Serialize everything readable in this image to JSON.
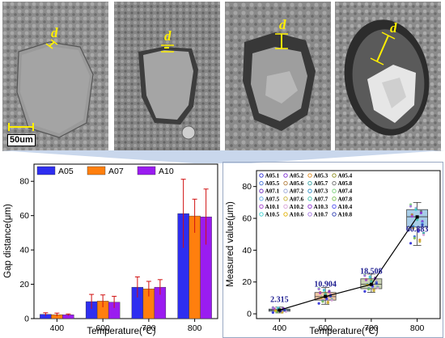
{
  "panels": {
    "scale_bar_label": "50um",
    "gap_symbol": "d"
  },
  "colors": {
    "A05": "#2e2ef0",
    "A07": "#ff7f0e",
    "A10": "#9a1cf0",
    "box_400": "#a8cde8",
    "box_600": "#f2c7a6",
    "box_700": "#c9d3b3",
    "box_800": "#a8cde8",
    "arrow": "#c9d7ec"
  },
  "chart_data": [
    {
      "type": "bar",
      "title": "",
      "xlabel": "Temperature(℃)",
      "ylabel": "Gap distance(μm)",
      "categories": [
        "400",
        "600",
        "700",
        "800"
      ],
      "ylim": [
        0,
        90
      ],
      "yticks": [
        0,
        20,
        40,
        60,
        80
      ],
      "legend_position": "top-left",
      "series": [
        {
          "name": "A05",
          "values": [
            2.5,
            9.9,
            18.3,
            61.2
          ],
          "errors": [
            0.9,
            4.2,
            6.0,
            20.0
          ]
        },
        {
          "name": "A07",
          "values": [
            2.3,
            10.2,
            17.3,
            59.8
          ],
          "errors": [
            0.9,
            3.6,
            4.4,
            9.8
          ]
        },
        {
          "name": "A10",
          "values": [
            2.2,
            9.6,
            18.3,
            59.3
          ],
          "errors": [
            0.5,
            3.4,
            4.4,
            16.2
          ]
        }
      ]
    },
    {
      "type": "box",
      "title": "",
      "xlabel": "Temperature(℃)",
      "ylabel": "Measured value(μm)",
      "categories": [
        "400",
        "600",
        "700",
        "800"
      ],
      "ylim": [
        -3,
        90
      ],
      "yticks": [
        0,
        20,
        40,
        60,
        80
      ],
      "means": [
        2.315,
        10.904,
        18.508,
        60.883
      ],
      "mean_labels": [
        "2.315",
        "10.904",
        "18.508",
        "60.883"
      ],
      "boxes": [
        {
          "q1": 1.6,
          "median": 2.3,
          "q3": 3.0,
          "whisker_low": 0.6,
          "whisker_high": 4.2
        },
        {
          "q1": 8.6,
          "median": 10.8,
          "q3": 13.4,
          "whisker_low": 6.0,
          "whisker_high": 16.5
        },
        {
          "q1": 15.8,
          "median": 18.6,
          "q3": 22.0,
          "whisker_low": 13.5,
          "whisker_high": 25.0
        },
        {
          "q1": 54.5,
          "median": 61.0,
          "q3": 65.5,
          "whisker_low": 43.0,
          "whisker_high": 70.0
        }
      ],
      "legend_entries": [
        "A05.1",
        "A05.2",
        "A05.3",
        "A05.4",
        "A05.5",
        "A05.6",
        "A05.7",
        "A05.8",
        "A07.1",
        "A07.2",
        "A07.3",
        "A07.4",
        "A07.5",
        "A07.6",
        "A07.7",
        "A07.8",
        "A10.1",
        "A10.2",
        "A10.3",
        "A10.4",
        "A10.5",
        "A10.6",
        "A10.7",
        "A10.8"
      ],
      "legend_colors": [
        "#2a2ad6",
        "#7b2bd0",
        "#e08a1c",
        "#8c8c1a",
        "#3f6fd8",
        "#b07a3a",
        "#2f9e9e",
        "#6a6a6a",
        "#6d2bc0",
        "#9aa8d8",
        "#2b8cc4",
        "#7ad27a",
        "#5ea7e8",
        "#c7b23a",
        "#3ec0b0",
        "#7abf50",
        "#a53fd0",
        "#d8a0d8",
        "#8a2bd0",
        "#4a4af0",
        "#3ad0d0",
        "#e0b000",
        "#a070e0",
        "#2a3ab0"
      ]
    }
  ]
}
